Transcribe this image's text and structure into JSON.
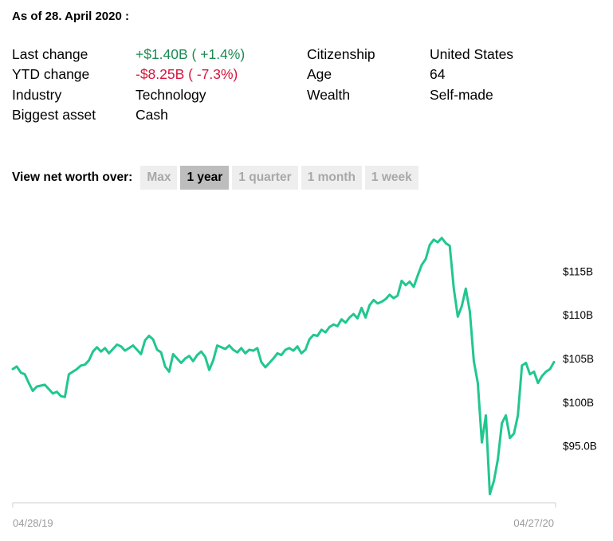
{
  "as_of": "As of 28. April 2020 :",
  "stats_left": [
    {
      "label": "Last change",
      "value": "+$1.40B ( +1.4%)",
      "tone": "pos"
    },
    {
      "label": "YTD change",
      "value": "-$8.25B ( -7.3%)",
      "tone": "neg"
    },
    {
      "label": "Industry",
      "value": "Technology",
      "tone": ""
    },
    {
      "label": "Biggest asset",
      "value": "Cash",
      "tone": ""
    }
  ],
  "stats_right": [
    {
      "label": "Citizenship",
      "value": "United States"
    },
    {
      "label": "Age",
      "value": "64"
    },
    {
      "label": "Wealth",
      "value": "Self-made"
    }
  ],
  "range_selector": {
    "label": "View net worth over:",
    "options": [
      "Max",
      "1 year",
      "1 quarter",
      "1 month",
      "1 week"
    ],
    "selected": "1 year"
  },
  "colors": {
    "line": "#21c78e",
    "positive": "#1b8b52",
    "negative": "#d6163e"
  },
  "chart_data": {
    "type": "line",
    "title": "",
    "xlabel": "",
    "ylabel": "",
    "x_tick_labels": [
      "04/28/19",
      "04/27/20"
    ],
    "y_tick_labels": [
      "$95.0B",
      "$100B",
      "$105B",
      "$110B",
      "$115B"
    ],
    "y_ticks": [
      95,
      100,
      105,
      110,
      115
    ],
    "ylim": [
      88.5,
      120.5
    ],
    "grid": false,
    "series": [
      {
        "values": [
          103.8,
          104.1,
          103.4,
          103.2,
          102.2,
          101.3,
          101.8,
          101.9,
          102.0,
          101.5,
          101.0,
          101.2,
          100.7,
          100.6,
          103.2,
          103.5,
          103.8,
          104.2,
          104.3,
          104.8,
          105.8,
          106.3,
          105.8,
          106.2,
          105.6,
          106.1,
          106.6,
          106.4,
          105.9,
          106.2,
          106.5,
          106.0,
          105.5,
          107.1,
          107.6,
          107.2,
          106.0,
          105.7,
          104.1,
          103.5,
          105.5,
          105.0,
          104.5,
          105.0,
          105.3,
          104.7,
          105.4,
          105.8,
          105.2,
          103.7,
          104.8,
          106.5,
          106.3,
          106.1,
          106.5,
          106.0,
          105.7,
          106.2,
          105.6,
          106.0,
          105.9,
          106.2,
          104.6,
          104.0,
          104.5,
          105.0,
          105.6,
          105.4,
          106.0,
          106.2,
          105.9,
          106.4,
          105.6,
          106.0,
          107.2,
          107.7,
          107.6,
          108.3,
          108.0,
          108.6,
          108.9,
          108.7,
          109.5,
          109.1,
          109.7,
          110.1,
          109.6,
          110.8,
          109.7,
          111.1,
          111.7,
          111.3,
          111.5,
          111.8,
          112.3,
          111.9,
          112.2,
          113.9,
          113.4,
          113.8,
          113.2,
          114.5,
          115.7,
          116.4,
          118.0,
          118.6,
          118.3,
          118.8,
          118.2,
          117.9,
          113.0,
          109.8,
          111.0,
          113.0,
          110.4,
          104.7,
          102.2,
          95.4,
          98.5,
          89.5,
          91.0,
          93.5,
          97.6,
          98.5,
          95.9,
          96.4,
          98.5,
          104.2,
          104.5,
          103.2,
          103.5,
          102.2,
          103.0,
          103.5,
          103.8,
          104.6
        ]
      }
    ]
  }
}
